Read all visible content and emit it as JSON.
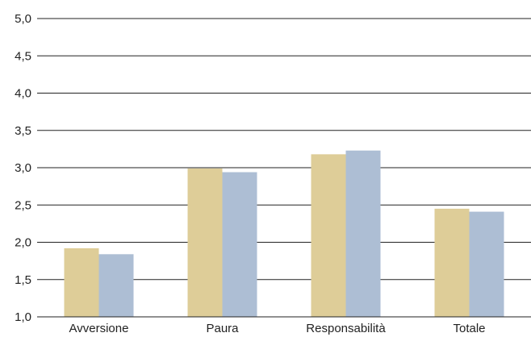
{
  "chart_data": {
    "type": "bar",
    "title": "",
    "xlabel": "",
    "ylabel": "",
    "categories": [
      "Avversione",
      "Paura",
      "Responsabilità",
      "Totale"
    ],
    "series": [
      {
        "color": "#decd98",
        "values": [
          1.92,
          2.99,
          3.18,
          2.45
        ]
      },
      {
        "color": "#adbed4",
        "values": [
          1.84,
          2.94,
          3.23,
          2.41
        ]
      }
    ],
    "ylim": [
      1.0,
      5.0
    ],
    "yticks": [
      1.0,
      1.5,
      2.0,
      2.5,
      3.0,
      3.5,
      4.0,
      4.5,
      5.0
    ],
    "ytick_labels": [
      "1,0",
      "1,5",
      "2,0",
      "2,5",
      "3,0",
      "3,5",
      "4,0",
      "4,5",
      "5,0"
    ],
    "grid": true,
    "legend": "none"
  }
}
